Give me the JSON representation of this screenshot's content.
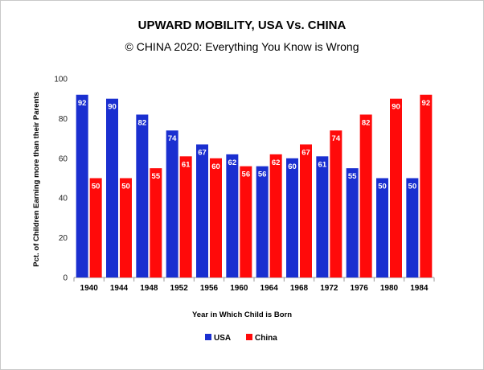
{
  "chart_data": {
    "type": "bar",
    "title": "UPWARD MOBILITY, USA Vs. CHINA",
    "subtitle": "© CHINA 2020: Everything You Know is Wrong",
    "xlabel": "Year in Which Child is Born",
    "ylabel": "Pct. of Children Earning more than their Parents",
    "ylim": [
      0,
      100
    ],
    "yticks": [
      "0",
      "20",
      "40",
      "60",
      "80",
      "100"
    ],
    "categories": [
      "1940",
      "1944",
      "1948",
      "1952",
      "1956",
      "1960",
      "1964",
      "1968",
      "1972",
      "1976",
      "1980",
      "1984"
    ],
    "series": [
      {
        "name": "USA",
        "color": "#1a2fd0",
        "values": [
          92,
          90,
          82,
          74,
          67,
          62,
          56,
          60,
          61,
          55,
          50,
          50
        ]
      },
      {
        "name": "China",
        "color": "#ff0a0a",
        "values": [
          50,
          50,
          55,
          61,
          60,
          56,
          62,
          67,
          74,
          82,
          90,
          92
        ]
      }
    ],
    "grid": false,
    "legend": "bottom-center"
  }
}
